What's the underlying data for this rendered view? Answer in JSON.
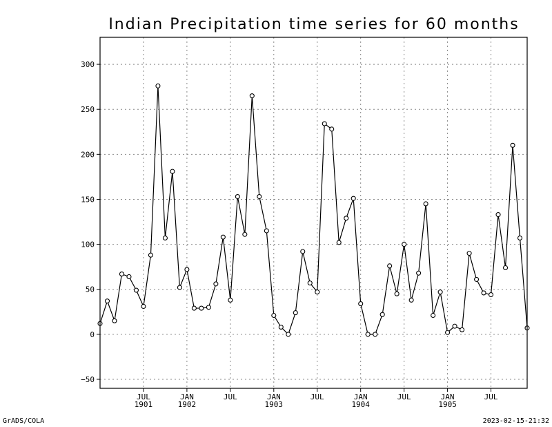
{
  "chart_data": {
    "type": "line",
    "title": "Indian Precipitation time series for 60 months",
    "xlabel": "",
    "ylabel": "",
    "x": [
      1,
      2,
      3,
      4,
      5,
      6,
      7,
      8,
      9,
      10,
      11,
      12,
      13,
      14,
      15,
      16,
      17,
      18,
      19,
      20,
      21,
      22,
      23,
      24,
      25,
      26,
      27,
      28,
      29,
      30,
      31,
      32,
      33,
      34,
      35,
      36,
      37,
      38,
      39,
      40,
      41,
      42,
      43,
      44,
      45,
      46,
      47,
      48,
      49,
      50,
      51,
      52,
      53,
      54,
      55,
      56,
      57,
      58,
      59,
      60
    ],
    "series": [
      {
        "name": "",
        "values": [
          12,
          37,
          15,
          67,
          64,
          49,
          31,
          88,
          276,
          107,
          181,
          52,
          72,
          29,
          29,
          30,
          56,
          108,
          38,
          153,
          111,
          265,
          153,
          115,
          21,
          8,
          0,
          24,
          92,
          57,
          47,
          234,
          228,
          102,
          129,
          151,
          34,
          0,
          0,
          22,
          76,
          45,
          100,
          38,
          68,
          145,
          21,
          47,
          2,
          9,
          5,
          90,
          61,
          46,
          44,
          133,
          74,
          210,
          107,
          7
        ]
      }
    ],
    "ylim": [
      -60,
      330
    ],
    "yticks": [
      -50,
      0,
      50,
      100,
      150,
      200,
      250,
      300
    ],
    "xlim": [
      1,
      60
    ],
    "xticks": [
      {
        "x": 7,
        "month": "JUL",
        "year": "1901"
      },
      {
        "x": 13,
        "month": "JAN",
        "year": "1902"
      },
      {
        "x": 19,
        "month": "JUL",
        "year": ""
      },
      {
        "x": 25,
        "month": "JAN",
        "year": "1903"
      },
      {
        "x": 31,
        "month": "JUL",
        "year": ""
      },
      {
        "x": 37,
        "month": "JAN",
        "year": "1904"
      },
      {
        "x": 43,
        "month": "JUL",
        "year": ""
      },
      {
        "x": 49,
        "month": "JAN",
        "year": "1905"
      },
      {
        "x": 55,
        "month": "JUL",
        "year": ""
      }
    ],
    "grid": true
  },
  "footer": {
    "left": "GrADS/COLA",
    "right": "2023-02-15-21:32"
  }
}
